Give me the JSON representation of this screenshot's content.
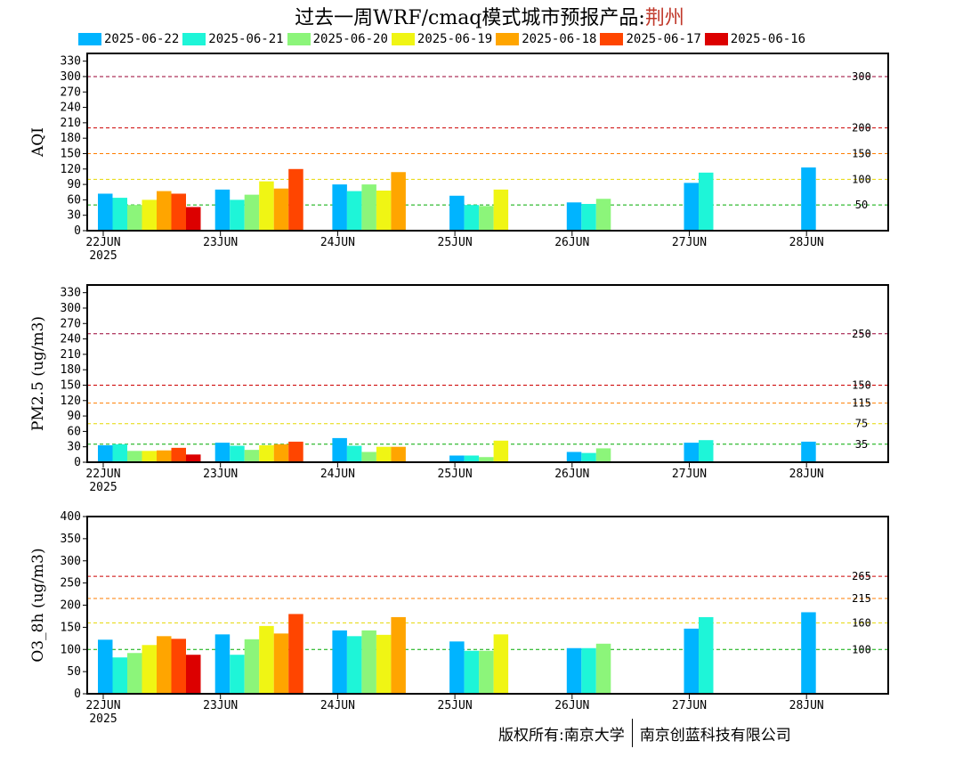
{
  "header": {
    "title_prefix": "过去一周WRF/cmaq模式城市预报产品:",
    "city": "荆州"
  },
  "footer": {
    "copyright": "版权所有:南京大学",
    "company": "南京创蓝科技有限公司"
  },
  "chart_data": {
    "type": "bar",
    "categories": [
      "22JUN",
      "23JUN",
      "24JUN",
      "25JUN",
      "26JUN",
      "27JUN",
      "28JUN"
    ],
    "year_label": "2025",
    "series": [
      {
        "name": "2025-06-22",
        "color": "#00b4ff"
      },
      {
        "name": "2025-06-21",
        "color": "#1ef5d8"
      },
      {
        "name": "2025-06-20",
        "color": "#8cf57a"
      },
      {
        "name": "2025-06-19",
        "color": "#f0f514"
      },
      {
        "name": "2025-06-18",
        "color": "#ffa500"
      },
      {
        "name": "2025-06-17",
        "color": "#ff4500"
      },
      {
        "name": "2025-06-16",
        "color": "#dc0000"
      }
    ],
    "panels": [
      {
        "ylabel": "AQI",
        "ylim": [
          0,
          345
        ],
        "yticks": [
          0,
          30,
          60,
          90,
          120,
          150,
          180,
          210,
          240,
          270,
          300,
          330
        ],
        "thresholds": [
          {
            "value": 300,
            "label": "300",
            "color": "#990033"
          },
          {
            "value": 200,
            "label": "200",
            "color": "#cc0000"
          },
          {
            "value": 150,
            "label": "150",
            "color": "#ff7e00"
          },
          {
            "value": 100,
            "label": "100",
            "color": "#e6d800"
          },
          {
            "value": 50,
            "label": "50",
            "color": "#00aa00"
          }
        ],
        "values": [
          [
            72,
            80,
            90,
            68,
            55,
            93,
            123
          ],
          [
            64,
            60,
            77,
            50,
            52,
            113,
            null
          ],
          [
            50,
            70,
            90,
            48,
            62,
            null,
            null
          ],
          [
            60,
            96,
            78,
            80,
            null,
            null,
            null
          ],
          [
            77,
            82,
            114,
            null,
            null,
            null,
            null
          ],
          [
            72,
            120,
            null,
            null,
            null,
            null,
            null
          ],
          [
            46,
            null,
            null,
            null,
            null,
            null,
            null
          ]
        ]
      },
      {
        "ylabel": "PM2.5 (ug/m3)",
        "ylim": [
          0,
          345
        ],
        "yticks": [
          0,
          30,
          60,
          90,
          120,
          150,
          180,
          210,
          240,
          270,
          300,
          330
        ],
        "thresholds": [
          {
            "value": 250,
            "label": "250",
            "color": "#990033"
          },
          {
            "value": 150,
            "label": "150",
            "color": "#cc0000"
          },
          {
            "value": 115,
            "label": "115",
            "color": "#ff7e00"
          },
          {
            "value": 75,
            "label": "75",
            "color": "#e6d800"
          },
          {
            "value": 35,
            "label": "35",
            "color": "#00aa00"
          }
        ],
        "values": [
          [
            33,
            38,
            47,
            13,
            20,
            38,
            40
          ],
          [
            35,
            32,
            32,
            13,
            18,
            43,
            null
          ],
          [
            22,
            24,
            20,
            10,
            27,
            null,
            null
          ],
          [
            22,
            33,
            30,
            42,
            null,
            null,
            null
          ],
          [
            23,
            35,
            30,
            null,
            null,
            null,
            null
          ],
          [
            28,
            40,
            null,
            null,
            null,
            null,
            null
          ],
          [
            15,
            null,
            null,
            null,
            null,
            null,
            null
          ]
        ]
      },
      {
        "ylabel": "O3_8h (ug/m3)",
        "ylim": [
          0,
          400
        ],
        "yticks": [
          0,
          50,
          100,
          150,
          200,
          250,
          300,
          350,
          400
        ],
        "thresholds": [
          {
            "value": 265,
            "label": "265",
            "color": "#cc0000"
          },
          {
            "value": 215,
            "label": "215",
            "color": "#ff7e00"
          },
          {
            "value": 160,
            "label": "160",
            "color": "#e6d800"
          },
          {
            "value": 100,
            "label": "100",
            "color": "#00aa00"
          }
        ],
        "values": [
          [
            122,
            134,
            143,
            118,
            103,
            147,
            184
          ],
          [
            82,
            88,
            130,
            97,
            103,
            173,
            null
          ],
          [
            92,
            123,
            143,
            97,
            113,
            null,
            null
          ],
          [
            110,
            153,
            133,
            134,
            null,
            null,
            null
          ],
          [
            130,
            136,
            173,
            null,
            null,
            null,
            null
          ],
          [
            124,
            180,
            null,
            null,
            null,
            null,
            null
          ],
          [
            88,
            null,
            null,
            null,
            null,
            null,
            null
          ]
        ]
      }
    ]
  }
}
